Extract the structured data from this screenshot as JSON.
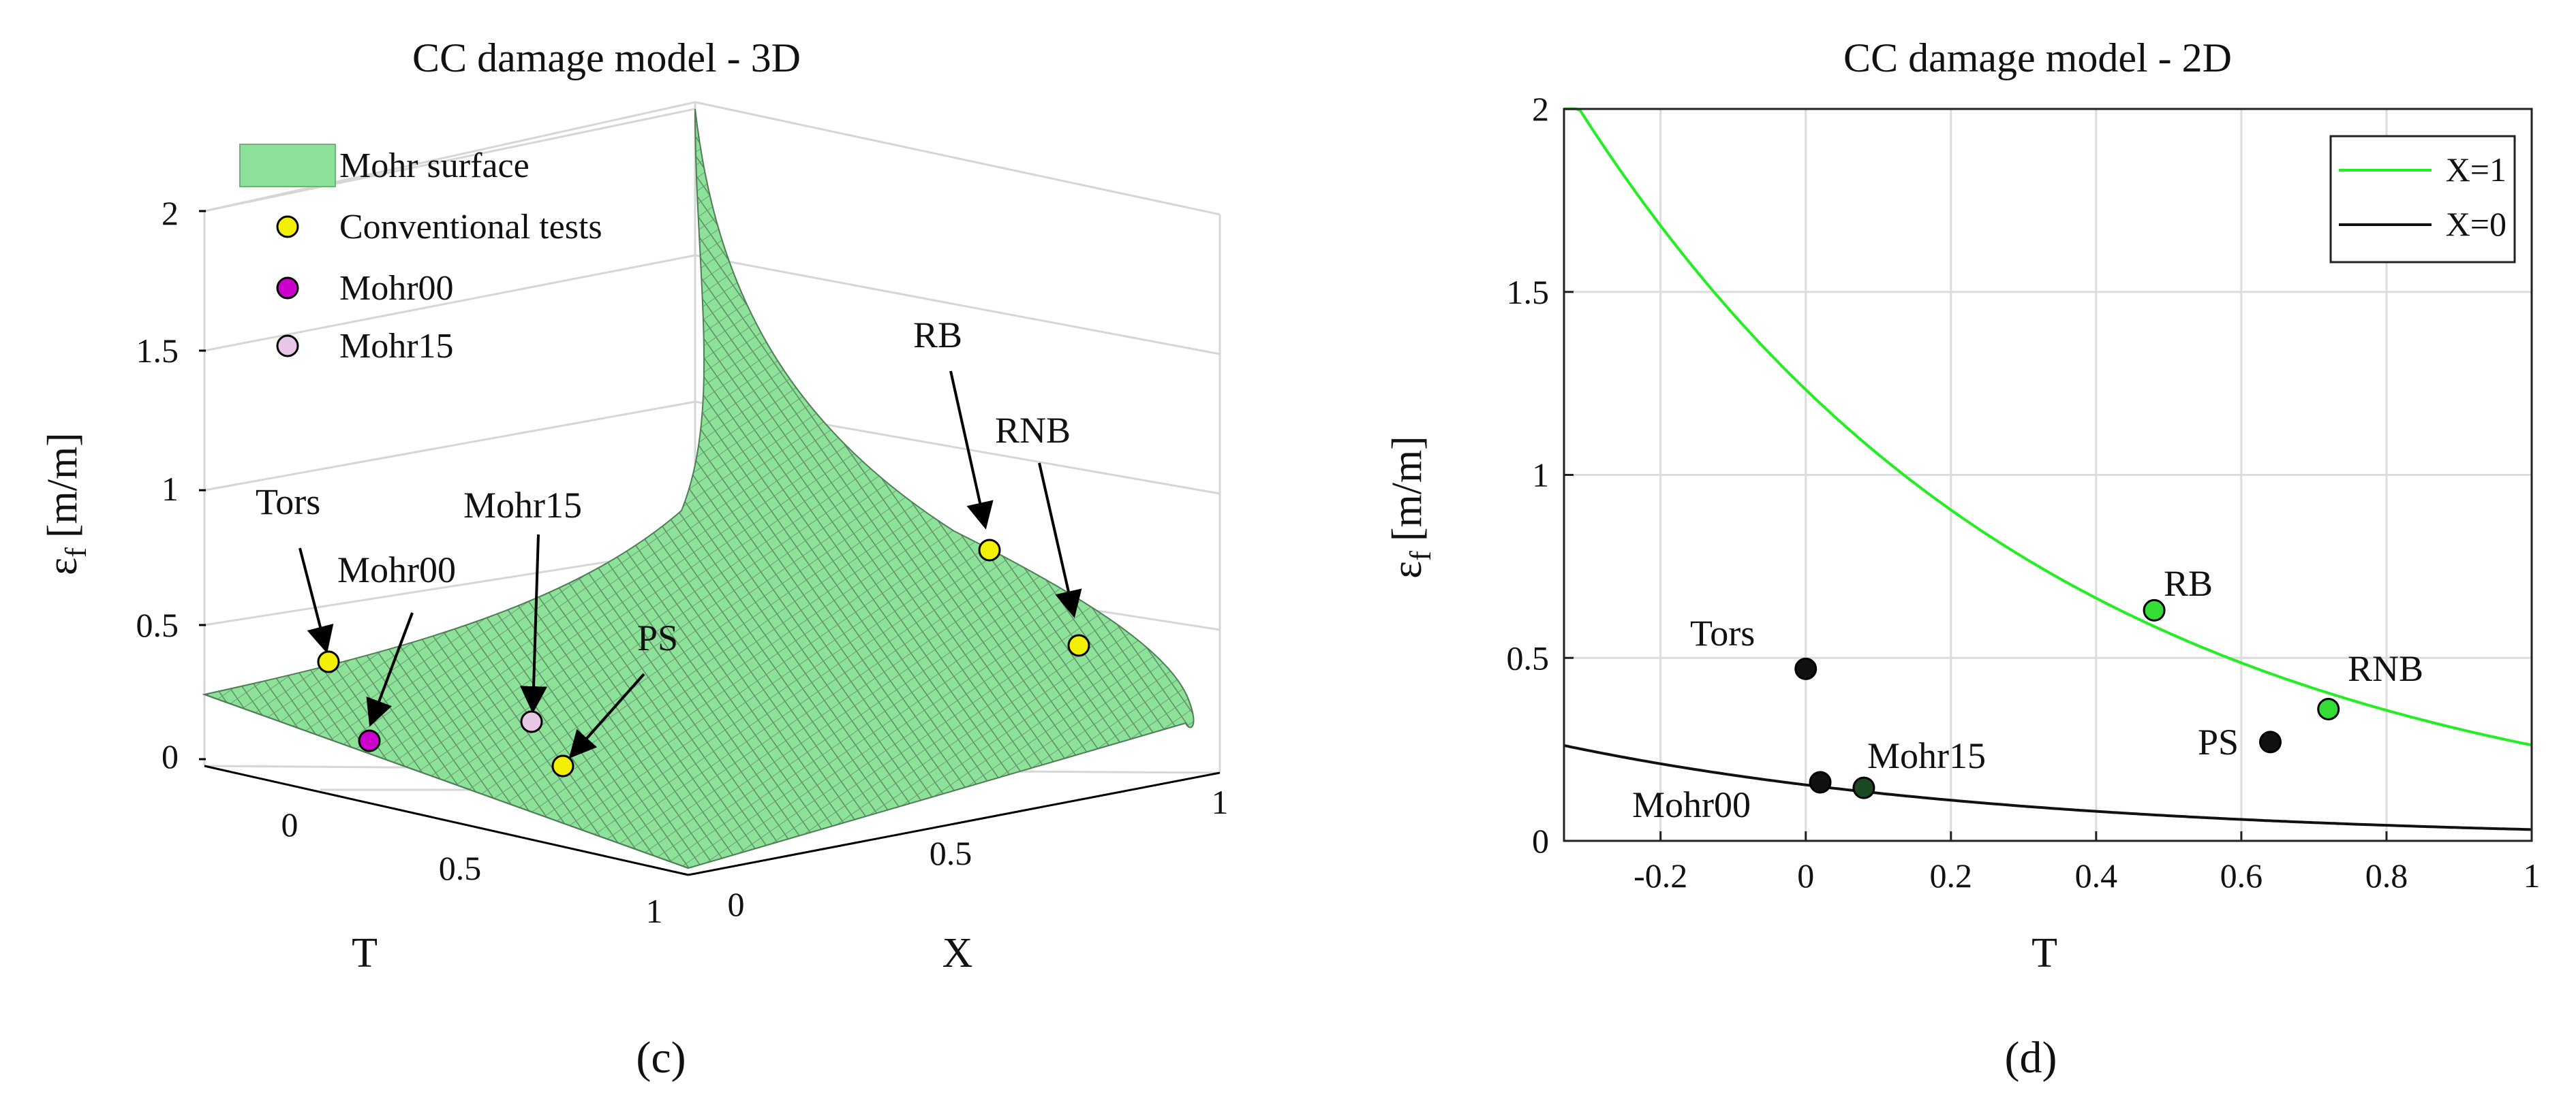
{
  "colors": {
    "surface_fill": "#8de29a",
    "surface_mesh": "#5d8a63",
    "surface_dark": "#6fa37a",
    "yellow": "#f2f000",
    "magenta": "#cc00cc",
    "pink": "#e8c6e6",
    "x1_curve": "#22ee22",
    "x0_curve": "#111111",
    "green_pt": "#33dd33",
    "dark_green_pt": "#1a4a24",
    "grid": "#dcdcdc"
  },
  "chart_data": [
    {
      "type": "surface",
      "title": "CC damage model - 3D",
      "xlabel": "T",
      "ylabel": "X",
      "zlabel_main": "ε",
      "zlabel_sub": "f",
      "zlabel_unit": "[m/m]",
      "xlim": [
        -0.333,
        1
      ],
      "ylim": [
        0,
        1
      ],
      "zlim": [
        0,
        2.25
      ],
      "xticks": [
        "0",
        "0.5",
        "1"
      ],
      "yticks": [
        "0",
        "0.5",
        "1"
      ],
      "zticks": [
        "0",
        "0.5",
        "1",
        "1.5",
        "2"
      ],
      "legend": [
        {
          "label": "Mohr surface",
          "marker": "surface"
        },
        {
          "label": "Conventional tests",
          "marker": "yellow"
        },
        {
          "label": "Mohr00",
          "marker": "magenta"
        },
        {
          "label": "Mohr15",
          "marker": "pink"
        }
      ],
      "points": [
        {
          "name": "Tors",
          "label": "Tors",
          "T": 0.0,
          "X": 0.0,
          "eps": 0.37,
          "group": "yellow"
        },
        {
          "name": "Mohr00",
          "label": "Mohr00",
          "T": 0.02,
          "X": 0.0,
          "eps": 0.1,
          "group": "magenta"
        },
        {
          "name": "Mohr15",
          "label": "Mohr15",
          "T": 0.08,
          "X": 0.0,
          "eps": 0.15,
          "group": "pink"
        },
        {
          "name": "PS",
          "label": "PS",
          "T": 0.64,
          "X": 0.0,
          "eps": 0.07,
          "group": "yellow"
        },
        {
          "name": "RB",
          "label": "RB",
          "T": 0.48,
          "X": 1.0,
          "eps": 0.63,
          "group": "yellow"
        },
        {
          "name": "RNB",
          "label": "RNB",
          "T": 0.72,
          "X": 1.0,
          "eps": 0.36,
          "group": "yellow"
        }
      ]
    },
    {
      "type": "line",
      "title": "CC damage model - 2D",
      "xlabel": "T",
      "ylabel_main": "ε",
      "ylabel_sub": "f",
      "ylabel_unit": "[m/m]",
      "xlim": [
        -0.333,
        1
      ],
      "ylim": [
        0,
        2
      ],
      "xticks": [
        -0.2,
        0,
        0.2,
        0.4,
        0.6,
        0.8,
        1
      ],
      "yticks": [
        0,
        0.5,
        1,
        1.5,
        2
      ],
      "xtick_labels": [
        "-0.2",
        "0",
        "0.2",
        "0.4",
        "0.6",
        "0.8",
        "1"
      ],
      "ytick_labels": [
        "0",
        "0.5",
        "1",
        "1.5",
        "2"
      ],
      "legend": [
        {
          "label": "X=1",
          "color_key": "x1_curve"
        },
        {
          "label": "X=0",
          "color_key": "x0_curve"
        }
      ],
      "series": [
        {
          "name": "X=1",
          "model": "exp",
          "a": 1.233,
          "b": 1.55,
          "color_key": "x1_curve"
        },
        {
          "name": "X=0",
          "model": "exp",
          "a": 0.153,
          "b": 1.6,
          "color_key": "x0_curve"
        }
      ],
      "points": [
        {
          "name": "Tors",
          "label": "Tors",
          "T": 0.0,
          "eps": 0.47,
          "color_key": "x0_curve"
        },
        {
          "name": "Mohr00",
          "label": "Mohr00",
          "T": 0.02,
          "eps": 0.16,
          "color_key": "x0_curve"
        },
        {
          "name": "Mohr15",
          "label": "Mohr15",
          "T": 0.08,
          "eps": 0.145,
          "color_key": "dark_green_pt"
        },
        {
          "name": "PS",
          "label": "PS",
          "T": 0.64,
          "eps": 0.27,
          "color_key": "x0_curve"
        },
        {
          "name": "RB",
          "label": "RB",
          "T": 0.48,
          "eps": 0.63,
          "color_key": "green_pt"
        },
        {
          "name": "RNB",
          "label": "RNB",
          "T": 0.72,
          "eps": 0.36,
          "color_key": "green_pt"
        }
      ]
    }
  ],
  "captions": {
    "left": "(c)",
    "right": "(d)"
  }
}
